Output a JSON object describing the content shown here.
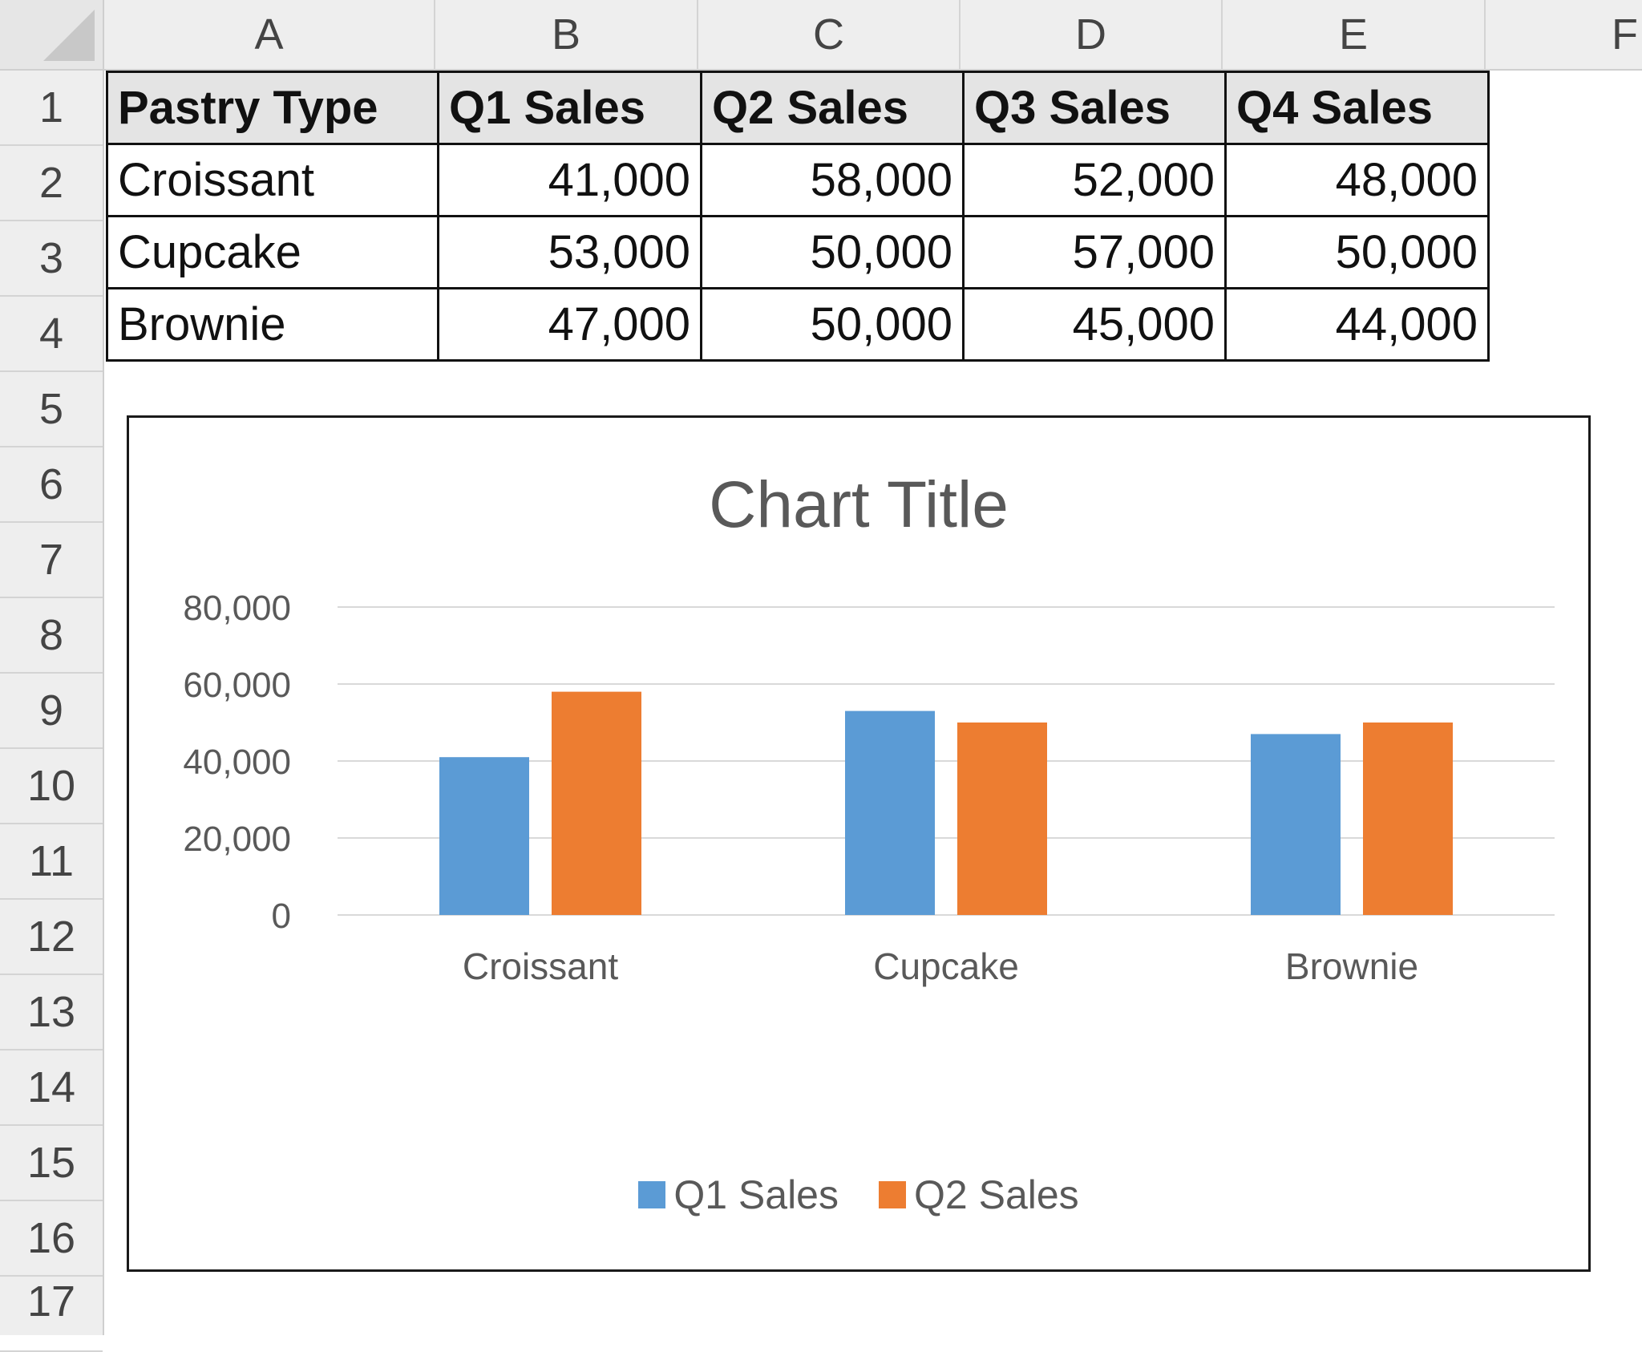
{
  "sheet": {
    "columns": [
      "A",
      "B",
      "C",
      "D",
      "E",
      "F"
    ],
    "rows": [
      "1",
      "2",
      "3",
      "4",
      "5",
      "6",
      "7",
      "8",
      "9",
      "10",
      "11",
      "12",
      "13",
      "14",
      "15",
      "16",
      "17"
    ]
  },
  "table": {
    "headers": [
      "Pastry Type",
      "Q1 Sales",
      "Q2 Sales",
      "Q3 Sales",
      "Q4 Sales"
    ],
    "rows": [
      [
        "Croissant",
        "41,000",
        "58,000",
        "52,000",
        "48,000"
      ],
      [
        "Cupcake",
        "53,000",
        "50,000",
        "57,000",
        "50,000"
      ],
      [
        "Brownie",
        "47,000",
        "50,000",
        "45,000",
        "44,000"
      ]
    ]
  },
  "colors": {
    "q1": "#5b9bd5",
    "q2": "#ed7d31",
    "grid": "#d9d9d9",
    "axis_text": "#595959"
  },
  "chart_data": {
    "type": "bar",
    "title": "Chart Title",
    "categories": [
      "Croissant",
      "Cupcake",
      "Brownie"
    ],
    "series": [
      {
        "name": "Q1 Sales",
        "values": [
          41000,
          53000,
          47000
        ]
      },
      {
        "name": "Q2 Sales",
        "values": [
          58000,
          50000,
          50000
        ]
      }
    ],
    "ylim": [
      0,
      80000
    ],
    "yticks": [
      "0",
      "20,000",
      "40,000",
      "60,000",
      "80,000"
    ],
    "ytick_values": [
      0,
      20000,
      40000,
      60000,
      80000
    ],
    "grid": true,
    "legend": "bottom"
  }
}
